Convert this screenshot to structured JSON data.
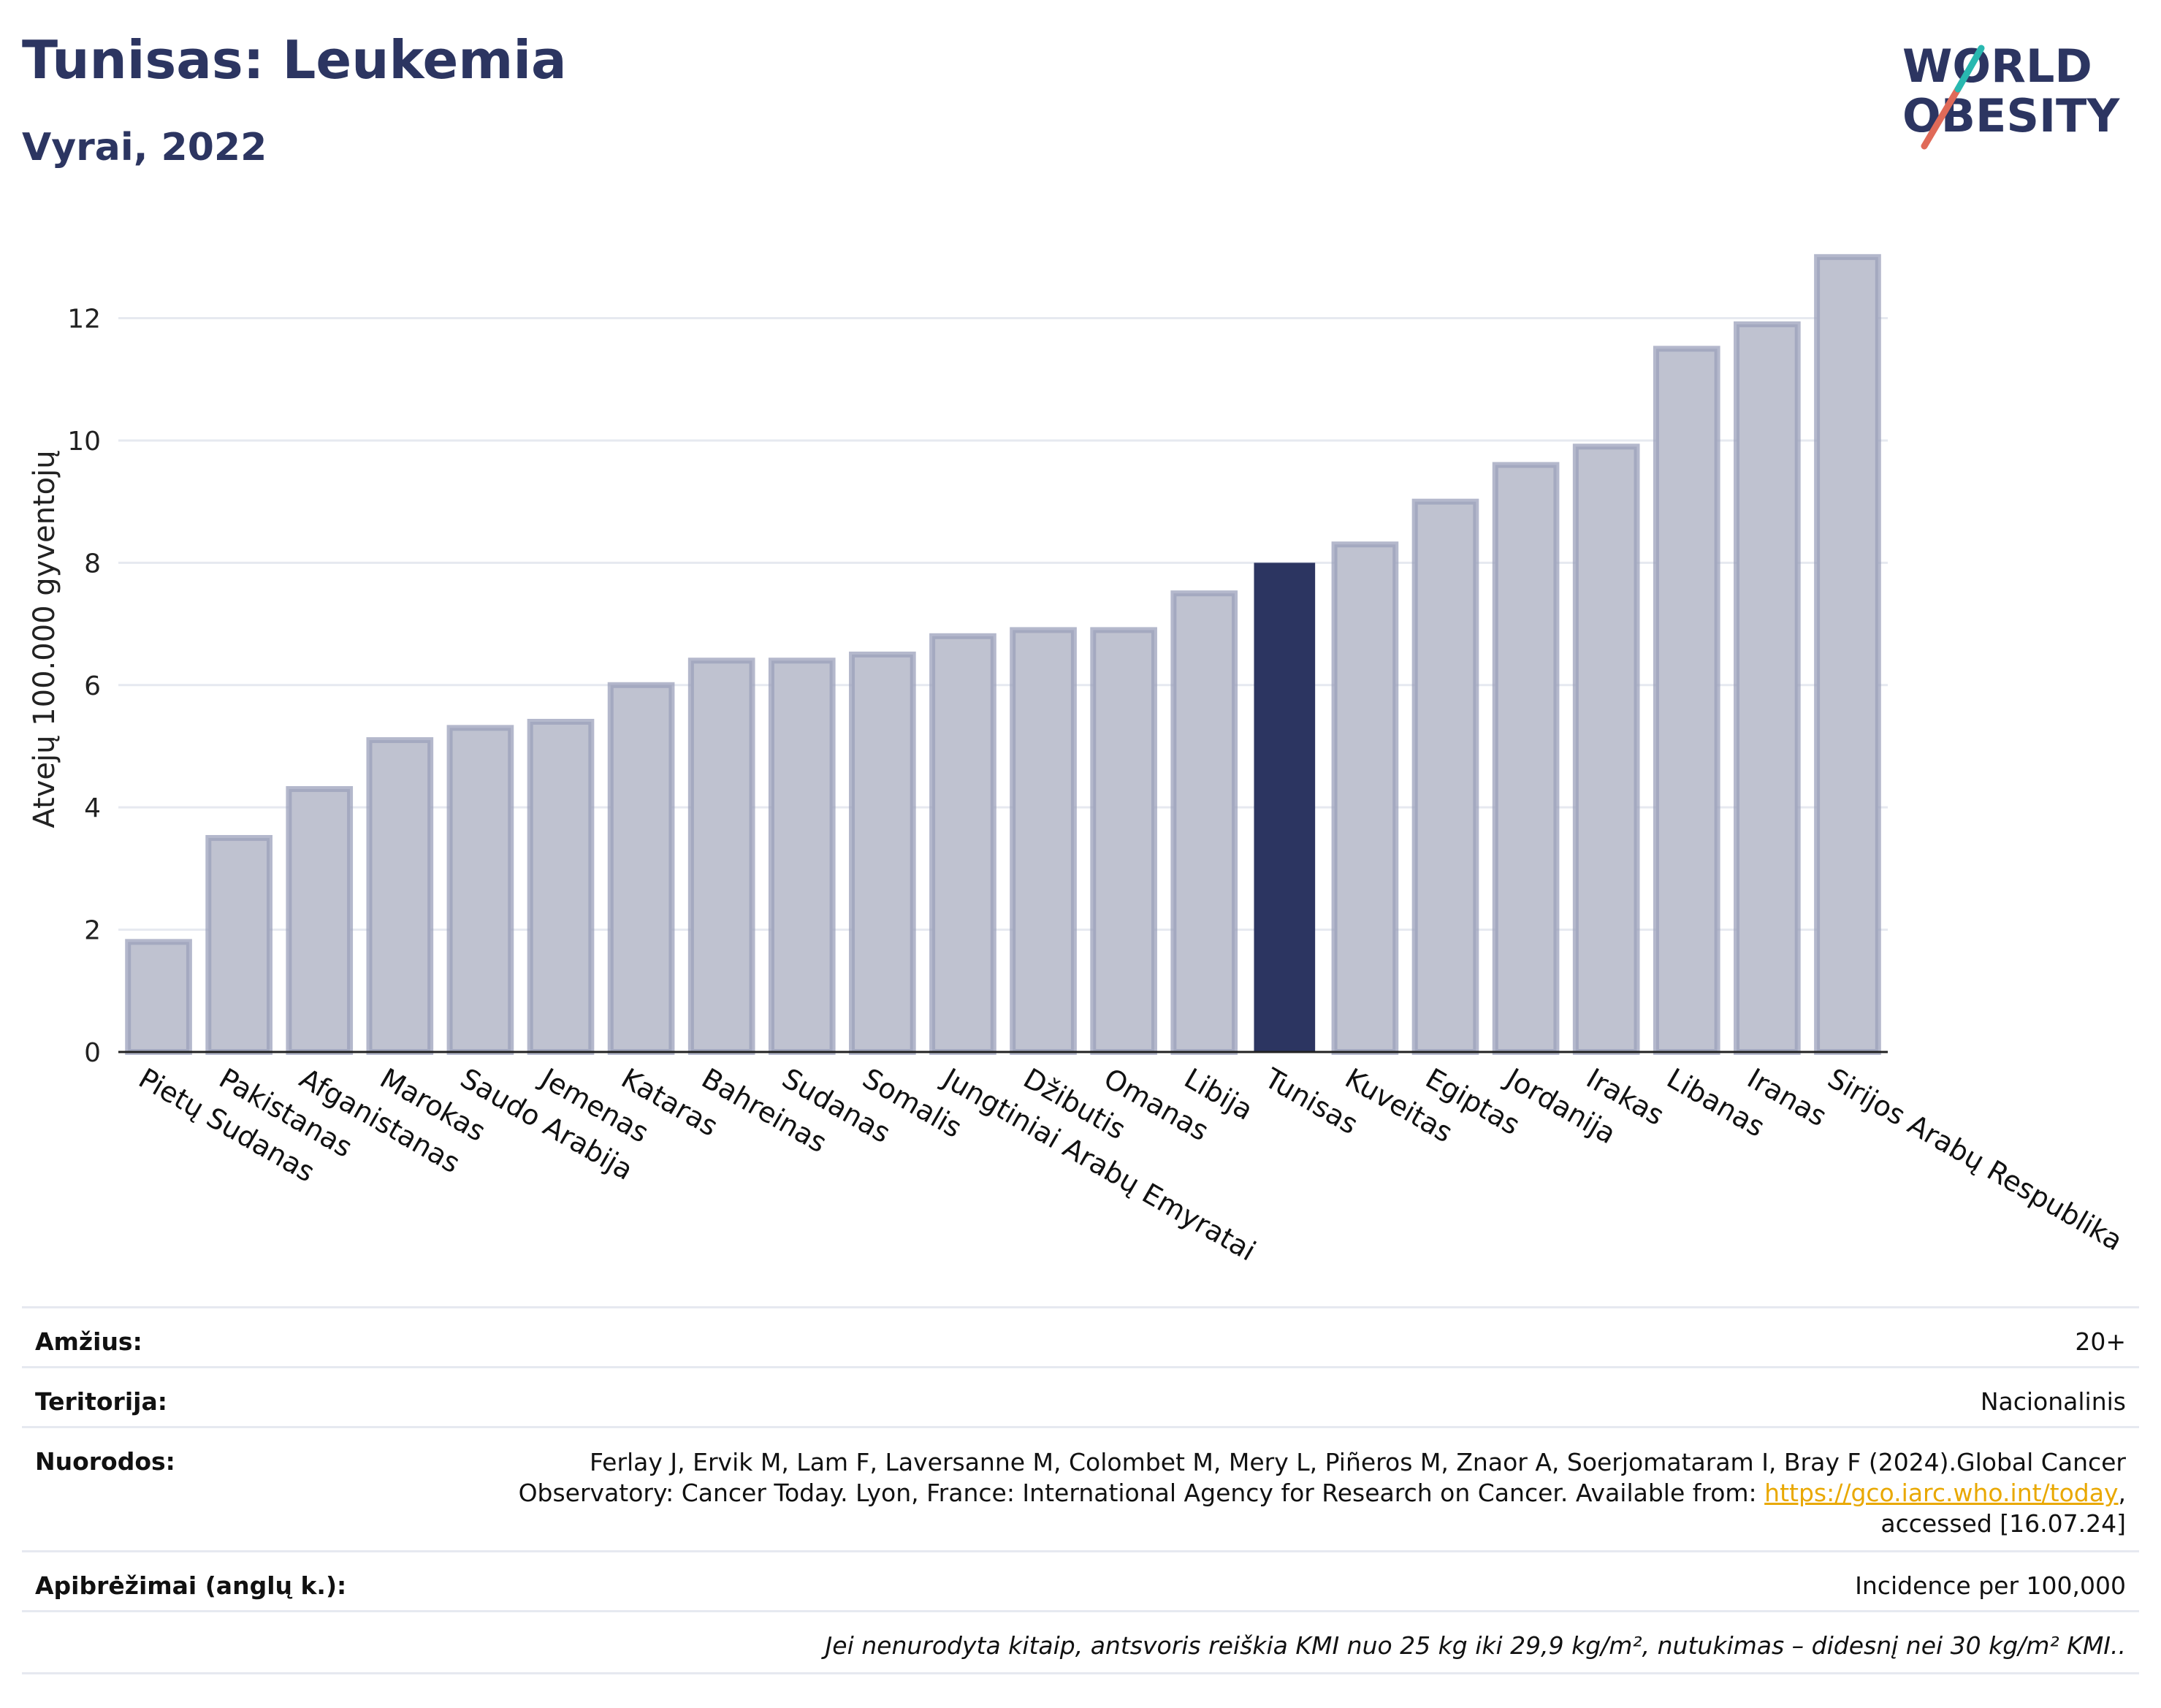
{
  "header": {
    "title": "Tunisas: Leukemia",
    "subtitle": "Vyrai, 2022"
  },
  "logo": {
    "line1": "WORLD",
    "line2": "OBESITY"
  },
  "chart_data": {
    "type": "bar",
    "ylabel": "Atvejų 100.000 gyventojų",
    "ylim": [
      0,
      13.5
    ],
    "yticks": [
      0,
      2,
      4,
      6,
      8,
      10,
      12
    ],
    "grid": true,
    "highlight": "Tunisas",
    "colors": {
      "bar": "#bfc2d0",
      "bar_stroke": "#9ba0bb",
      "highlight": "#2c3561"
    },
    "categories": [
      "Pietų Sudanas",
      "Pakistanas",
      "Afganistanas",
      "Marokas",
      "Saudo Arabija",
      "Jemenas",
      "Kataras",
      "Bahreinas",
      "Sudanas",
      "Somalis",
      "Jungtiniai Arabų Emyratai",
      "Džibutis",
      "Omanas",
      "Libija",
      "Tunisas",
      "Kuveitas",
      "Egiptas",
      "Jordanija",
      "Irakas",
      "Libanas",
      "Iranas",
      "Sirijos Arabų Respublika"
    ],
    "values": [
      1.8,
      3.5,
      4.3,
      5.1,
      5.3,
      5.4,
      6.0,
      6.4,
      6.4,
      6.5,
      6.8,
      6.9,
      6.9,
      7.5,
      8.0,
      8.3,
      9.0,
      9.6,
      9.9,
      11.5,
      11.9,
      13.0
    ]
  },
  "info": {
    "age_label": "Amžius:",
    "age_value": "20+",
    "territory_label": "Teritorija:",
    "territory_value": "Nacionalinis",
    "refs_label": "Nuorodos:",
    "refs_line1": "Ferlay J, Ervik M, Lam F, Laversanne M, Colombet M, Mery L, Piñeros M, Znaor A, Soerjomataram I, Bray F (2024).Global Cancer",
    "refs_line2": "Observatory: Cancer Today. Lyon, France: International Agency for Research on Cancer. Available from: ",
    "refs_link": "https://gco.iarc.who.int/today",
    "refs_line2_end": ",",
    "refs_line3": "accessed [16.07.24]",
    "defs_label": "Apibrėžimai (anglų k.):",
    "defs_value": "Incidence per 100,000",
    "note": "Jei nenurodyta kitaip, antsvoris reiškia KMI nuo 25 kg iki 29,9 kg/m², nutukimas – didesnį nei 30 kg/m² KMI.."
  }
}
